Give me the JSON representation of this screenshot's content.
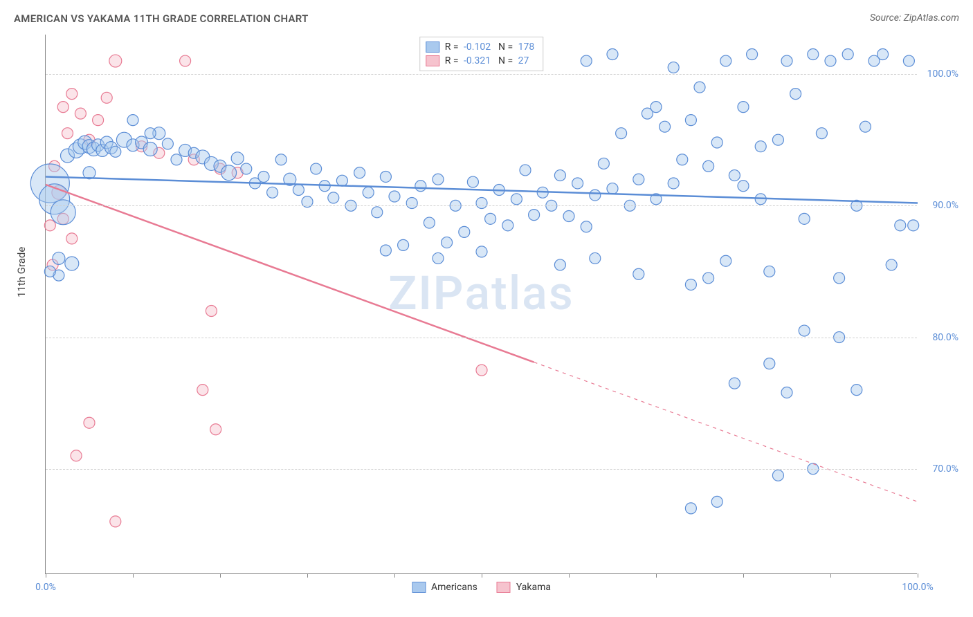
{
  "title": "AMERICAN VS YAKAMA 11TH GRADE CORRELATION CHART",
  "source": "Source: ZipAtlas.com",
  "ylabel": "11th Grade",
  "watermark_a": "ZIP",
  "watermark_b": "atlas",
  "chart": {
    "type": "scatter",
    "xlim": [
      0,
      100
    ],
    "ylim": [
      62,
      103
    ],
    "x_ticks": [
      0,
      10,
      20,
      30,
      40,
      50,
      60,
      70,
      80,
      90,
      100
    ],
    "x_tick_labels": {
      "0": "0.0%",
      "100": "100.0%"
    },
    "y_gridlines": [
      70,
      80,
      90,
      100
    ],
    "y_tick_labels": {
      "70": "70.0%",
      "80": "80.0%",
      "90": "90.0%",
      "100": "100.0%"
    },
    "grid_color": "#d0d0d0",
    "axis_color": "#888888",
    "background_color": "#ffffff",
    "point_stroke_width": 1.2,
    "point_opacity": 0.45,
    "trend_stroke_width": 2.5
  },
  "series": [
    {
      "name": "Americans",
      "fill": "#a9c9ee",
      "stroke": "#5b8dd6",
      "R": "-0.102",
      "N": "178",
      "trend": {
        "x1": 0,
        "y1": 92.2,
        "x2": 100,
        "y2": 90.2,
        "dash_after_x": null
      },
      "points": [
        {
          "x": 0.5,
          "y": 91.7,
          "r": 28
        },
        {
          "x": 1,
          "y": 90.5,
          "r": 22
        },
        {
          "x": 2,
          "y": 89.5,
          "r": 18
        },
        {
          "x": 3,
          "y": 85.6,
          "r": 10
        },
        {
          "x": 1.5,
          "y": 84.7,
          "r": 8
        },
        {
          "x": 2.5,
          "y": 93.8,
          "r": 10
        },
        {
          "x": 3.5,
          "y": 94.2,
          "r": 11
        },
        {
          "x": 4,
          "y": 94.5,
          "r": 11
        },
        {
          "x": 4.5,
          "y": 94.8,
          "r": 10
        },
        {
          "x": 5,
          "y": 94.5,
          "r": 10
        },
        {
          "x": 5.5,
          "y": 94.3,
          "r": 10
        },
        {
          "x": 6,
          "y": 94.6,
          "r": 9
        },
        {
          "x": 6.5,
          "y": 94.2,
          "r": 9
        },
        {
          "x": 7,
          "y": 94.8,
          "r": 9
        },
        {
          "x": 7.5,
          "y": 94.4,
          "r": 9
        },
        {
          "x": 8,
          "y": 94.1,
          "r": 8
        },
        {
          "x": 9,
          "y": 95.0,
          "r": 11
        },
        {
          "x": 10,
          "y": 94.6,
          "r": 9
        },
        {
          "x": 11,
          "y": 94.8,
          "r": 9
        },
        {
          "x": 12,
          "y": 94.3,
          "r": 10
        },
        {
          "x": 13,
          "y": 95.5,
          "r": 9
        },
        {
          "x": 14,
          "y": 94.7,
          "r": 8
        },
        {
          "x": 15,
          "y": 93.5,
          "r": 8
        },
        {
          "x": 16,
          "y": 94.2,
          "r": 9
        },
        {
          "x": 17,
          "y": 94.0,
          "r": 8
        },
        {
          "x": 18,
          "y": 93.7,
          "r": 10
        },
        {
          "x": 19,
          "y": 93.2,
          "r": 10
        },
        {
          "x": 20,
          "y": 93.0,
          "r": 9
        },
        {
          "x": 21,
          "y": 92.5,
          "r": 11
        },
        {
          "x": 22,
          "y": 93.6,
          "r": 9
        },
        {
          "x": 23,
          "y": 92.8,
          "r": 8
        },
        {
          "x": 24,
          "y": 91.7,
          "r": 8
        },
        {
          "x": 25,
          "y": 92.2,
          "r": 8
        },
        {
          "x": 26,
          "y": 91.0,
          "r": 8
        },
        {
          "x": 27,
          "y": 93.5,
          "r": 8
        },
        {
          "x": 28,
          "y": 92.0,
          "r": 9
        },
        {
          "x": 29,
          "y": 91.2,
          "r": 8
        },
        {
          "x": 30,
          "y": 90.3,
          "r": 8
        },
        {
          "x": 31,
          "y": 92.8,
          "r": 8
        },
        {
          "x": 32,
          "y": 91.5,
          "r": 8
        },
        {
          "x": 33,
          "y": 90.6,
          "r": 8
        },
        {
          "x": 34,
          "y": 91.9,
          "r": 8
        },
        {
          "x": 35,
          "y": 90.0,
          "r": 8
        },
        {
          "x": 36,
          "y": 92.5,
          "r": 8
        },
        {
          "x": 37,
          "y": 91.0,
          "r": 8
        },
        {
          "x": 38,
          "y": 89.5,
          "r": 8
        },
        {
          "x": 39,
          "y": 92.2,
          "r": 8
        },
        {
          "x": 40,
          "y": 90.7,
          "r": 8
        },
        {
          "x": 41,
          "y": 87.0,
          "r": 8
        },
        {
          "x": 42,
          "y": 90.2,
          "r": 8
        },
        {
          "x": 43,
          "y": 91.5,
          "r": 8
        },
        {
          "x": 44,
          "y": 88.7,
          "r": 8
        },
        {
          "x": 45,
          "y": 92.0,
          "r": 8
        },
        {
          "x": 46,
          "y": 87.2,
          "r": 8
        },
        {
          "x": 47,
          "y": 90.0,
          "r": 8
        },
        {
          "x": 48,
          "y": 88.0,
          "r": 8
        },
        {
          "x": 49,
          "y": 91.8,
          "r": 8
        },
        {
          "x": 50,
          "y": 90.2,
          "r": 8
        },
        {
          "x": 51,
          "y": 89.0,
          "r": 8
        },
        {
          "x": 52,
          "y": 91.2,
          "r": 8
        },
        {
          "x": 53,
          "y": 88.5,
          "r": 8
        },
        {
          "x": 54,
          "y": 90.5,
          "r": 8
        },
        {
          "x": 55,
          "y": 92.7,
          "r": 8
        },
        {
          "x": 56,
          "y": 89.3,
          "r": 8
        },
        {
          "x": 57,
          "y": 91.0,
          "r": 8
        },
        {
          "x": 58,
          "y": 90.0,
          "r": 8
        },
        {
          "x": 59,
          "y": 92.3,
          "r": 8
        },
        {
          "x": 60,
          "y": 89.2,
          "r": 8
        },
        {
          "x": 61,
          "y": 91.7,
          "r": 8
        },
        {
          "x": 62,
          "y": 88.4,
          "r": 8
        },
        {
          "x": 63,
          "y": 90.8,
          "r": 8
        },
        {
          "x": 64,
          "y": 93.2,
          "r": 8
        },
        {
          "x": 65,
          "y": 91.3,
          "r": 8
        },
        {
          "x": 66,
          "y": 95.5,
          "r": 8
        },
        {
          "x": 67,
          "y": 90.0,
          "r": 8
        },
        {
          "x": 68,
          "y": 92.0,
          "r": 8
        },
        {
          "x": 69,
          "y": 97.0,
          "r": 8
        },
        {
          "x": 70,
          "y": 90.5,
          "r": 8
        },
        {
          "x": 71,
          "y": 96.0,
          "r": 8
        },
        {
          "x": 72,
          "y": 91.7,
          "r": 8
        },
        {
          "x": 73,
          "y": 93.5,
          "r": 8
        },
        {
          "x": 62,
          "y": 101.0,
          "r": 8
        },
        {
          "x": 65,
          "y": 101.5,
          "r": 8
        },
        {
          "x": 70,
          "y": 97.5,
          "r": 8
        },
        {
          "x": 72,
          "y": 100.5,
          "r": 8
        },
        {
          "x": 74,
          "y": 96.5,
          "r": 8
        },
        {
          "x": 75,
          "y": 99.0,
          "r": 8
        },
        {
          "x": 76,
          "y": 93.0,
          "r": 8
        },
        {
          "x": 77,
          "y": 94.8,
          "r": 8
        },
        {
          "x": 78,
          "y": 101.0,
          "r": 8
        },
        {
          "x": 79,
          "y": 92.3,
          "r": 8
        },
        {
          "x": 80,
          "y": 97.5,
          "r": 8
        },
        {
          "x": 81,
          "y": 101.5,
          "r": 8
        },
        {
          "x": 82,
          "y": 90.5,
          "r": 8
        },
        {
          "x": 83,
          "y": 85.0,
          "r": 8
        },
        {
          "x": 84,
          "y": 95.0,
          "r": 8
        },
        {
          "x": 85,
          "y": 101.0,
          "r": 8
        },
        {
          "x": 86,
          "y": 98.5,
          "r": 8
        },
        {
          "x": 87,
          "y": 89.0,
          "r": 8
        },
        {
          "x": 88,
          "y": 101.5,
          "r": 8
        },
        {
          "x": 89,
          "y": 95.5,
          "r": 8
        },
        {
          "x": 90,
          "y": 101.0,
          "r": 8
        },
        {
          "x": 91,
          "y": 80.0,
          "r": 8
        },
        {
          "x": 92,
          "y": 101.5,
          "r": 8
        },
        {
          "x": 93,
          "y": 90.0,
          "r": 8
        },
        {
          "x": 94,
          "y": 96.0,
          "r": 8
        },
        {
          "x": 95,
          "y": 101.0,
          "r": 8
        },
        {
          "x": 96,
          "y": 101.5,
          "r": 8
        },
        {
          "x": 97,
          "y": 85.5,
          "r": 8
        },
        {
          "x": 98,
          "y": 88.5,
          "r": 8
        },
        {
          "x": 99,
          "y": 101.0,
          "r": 8
        },
        {
          "x": 99.5,
          "y": 88.5,
          "r": 8
        },
        {
          "x": 76,
          "y": 84.5,
          "r": 8
        },
        {
          "x": 78,
          "y": 85.8,
          "r": 8
        },
        {
          "x": 80,
          "y": 91.5,
          "r": 8
        },
        {
          "x": 82,
          "y": 94.5,
          "r": 8
        },
        {
          "x": 59,
          "y": 85.5,
          "r": 8
        },
        {
          "x": 50,
          "y": 86.5,
          "r": 8
        },
        {
          "x": 45,
          "y": 86.0,
          "r": 8
        },
        {
          "x": 39,
          "y": 86.6,
          "r": 8
        },
        {
          "x": 74,
          "y": 84.0,
          "r": 8
        },
        {
          "x": 68,
          "y": 84.8,
          "r": 8
        },
        {
          "x": 63,
          "y": 86.0,
          "r": 8
        },
        {
          "x": 83,
          "y": 78.0,
          "r": 8
        },
        {
          "x": 79,
          "y": 76.5,
          "r": 8
        },
        {
          "x": 85,
          "y": 75.8,
          "r": 8
        },
        {
          "x": 88,
          "y": 70.0,
          "r": 8
        },
        {
          "x": 84,
          "y": 69.5,
          "r": 8
        },
        {
          "x": 74,
          "y": 67.0,
          "r": 8
        },
        {
          "x": 77,
          "y": 67.5,
          "r": 8
        },
        {
          "x": 93,
          "y": 76.0,
          "r": 8
        },
        {
          "x": 91,
          "y": 84.5,
          "r": 8
        },
        {
          "x": 87,
          "y": 80.5,
          "r": 8
        },
        {
          "x": 5,
          "y": 92.5,
          "r": 9
        },
        {
          "x": 10,
          "y": 96.5,
          "r": 8
        },
        {
          "x": 12,
          "y": 95.5,
          "r": 8
        },
        {
          "x": 1.5,
          "y": 86.0,
          "r": 9
        },
        {
          "x": 0.5,
          "y": 85.0,
          "r": 8
        }
      ]
    },
    {
      "name": "Yakama",
      "fill": "#f6c3ce",
      "stroke": "#e87a93",
      "R": "-0.321",
      "N": "27",
      "trend": {
        "x1": 0,
        "y1": 91.6,
        "x2": 100,
        "y2": 67.5,
        "dash_after_x": 56
      },
      "points": [
        {
          "x": 3,
          "y": 98.5,
          "r": 8
        },
        {
          "x": 4,
          "y": 97.0,
          "r": 8
        },
        {
          "x": 7,
          "y": 98.2,
          "r": 8
        },
        {
          "x": 8,
          "y": 101.0,
          "r": 9
        },
        {
          "x": 2,
          "y": 97.5,
          "r": 8
        },
        {
          "x": 16,
          "y": 101.0,
          "r": 8
        },
        {
          "x": 5,
          "y": 95.0,
          "r": 8
        },
        {
          "x": 11,
          "y": 94.5,
          "r": 8
        },
        {
          "x": 13,
          "y": 94.0,
          "r": 8
        },
        {
          "x": 17,
          "y": 93.5,
          "r": 8
        },
        {
          "x": 20,
          "y": 92.8,
          "r": 8
        },
        {
          "x": 22,
          "y": 92.5,
          "r": 8
        },
        {
          "x": 1,
          "y": 93.0,
          "r": 8
        },
        {
          "x": 1.5,
          "y": 91.0,
          "r": 10
        },
        {
          "x": 2,
          "y": 89.0,
          "r": 8
        },
        {
          "x": 3,
          "y": 87.5,
          "r": 8
        },
        {
          "x": 0.8,
          "y": 85.5,
          "r": 8
        },
        {
          "x": 0.5,
          "y": 88.5,
          "r": 8
        },
        {
          "x": 5,
          "y": 73.5,
          "r": 8
        },
        {
          "x": 8,
          "y": 66.0,
          "r": 8
        },
        {
          "x": 19,
          "y": 82.0,
          "r": 8
        },
        {
          "x": 18,
          "y": 76.0,
          "r": 8
        },
        {
          "x": 19.5,
          "y": 73.0,
          "r": 8
        },
        {
          "x": 50,
          "y": 77.5,
          "r": 8
        },
        {
          "x": 3.5,
          "y": 71.0,
          "r": 8
        },
        {
          "x": 2.5,
          "y": 95.5,
          "r": 8
        },
        {
          "x": 6,
          "y": 96.5,
          "r": 8
        }
      ]
    }
  ],
  "legend_labels": {
    "americans": "Americans",
    "yakama": "Yakama"
  }
}
